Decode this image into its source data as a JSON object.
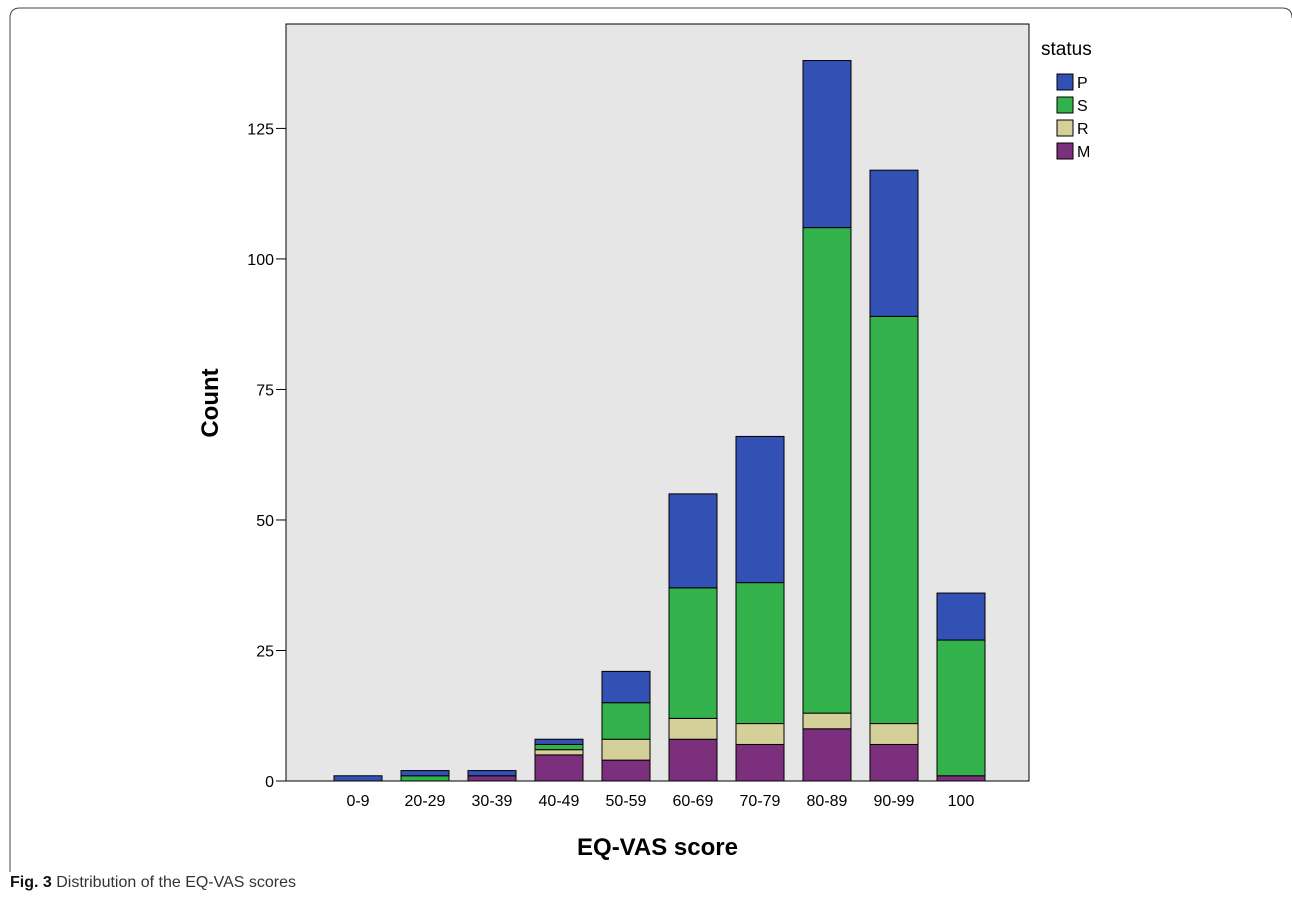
{
  "caption": {
    "label": "Fig. 3",
    "text": "Distribution of the EQ-VAS scores"
  },
  "chart_data": {
    "type": "bar",
    "stacked": true,
    "xlabel": "EQ-VAS score",
    "ylabel": "Count",
    "ylim": [
      0,
      145
    ],
    "yticks": [
      0,
      25,
      50,
      75,
      100,
      125
    ],
    "grid": false,
    "legend_placement": "right",
    "legend_title": "status",
    "categories": [
      "0-9",
      "20-29",
      "30-39",
      "40-49",
      "50-59",
      "60-69",
      "70-79",
      "80-89",
      "90-99",
      "100"
    ],
    "series": [
      {
        "name": "M",
        "color": "#7b2f7c",
        "values": [
          0,
          0,
          1,
          5,
          4,
          8,
          7,
          10,
          7,
          1
        ]
      },
      {
        "name": "R",
        "color": "#d5d09a",
        "values": [
          0,
          0,
          0,
          1,
          4,
          4,
          4,
          3,
          4,
          0
        ]
      },
      {
        "name": "S",
        "color": "#33b14a",
        "values": [
          0,
          1,
          0,
          1,
          7,
          25,
          27,
          93,
          78,
          26
        ]
      },
      {
        "name": "P",
        "color": "#3350b4",
        "values": [
          1,
          1,
          1,
          1,
          6,
          18,
          28,
          32,
          28,
          9
        ]
      }
    ],
    "legend_order": [
      "P",
      "S",
      "R",
      "M"
    ]
  }
}
